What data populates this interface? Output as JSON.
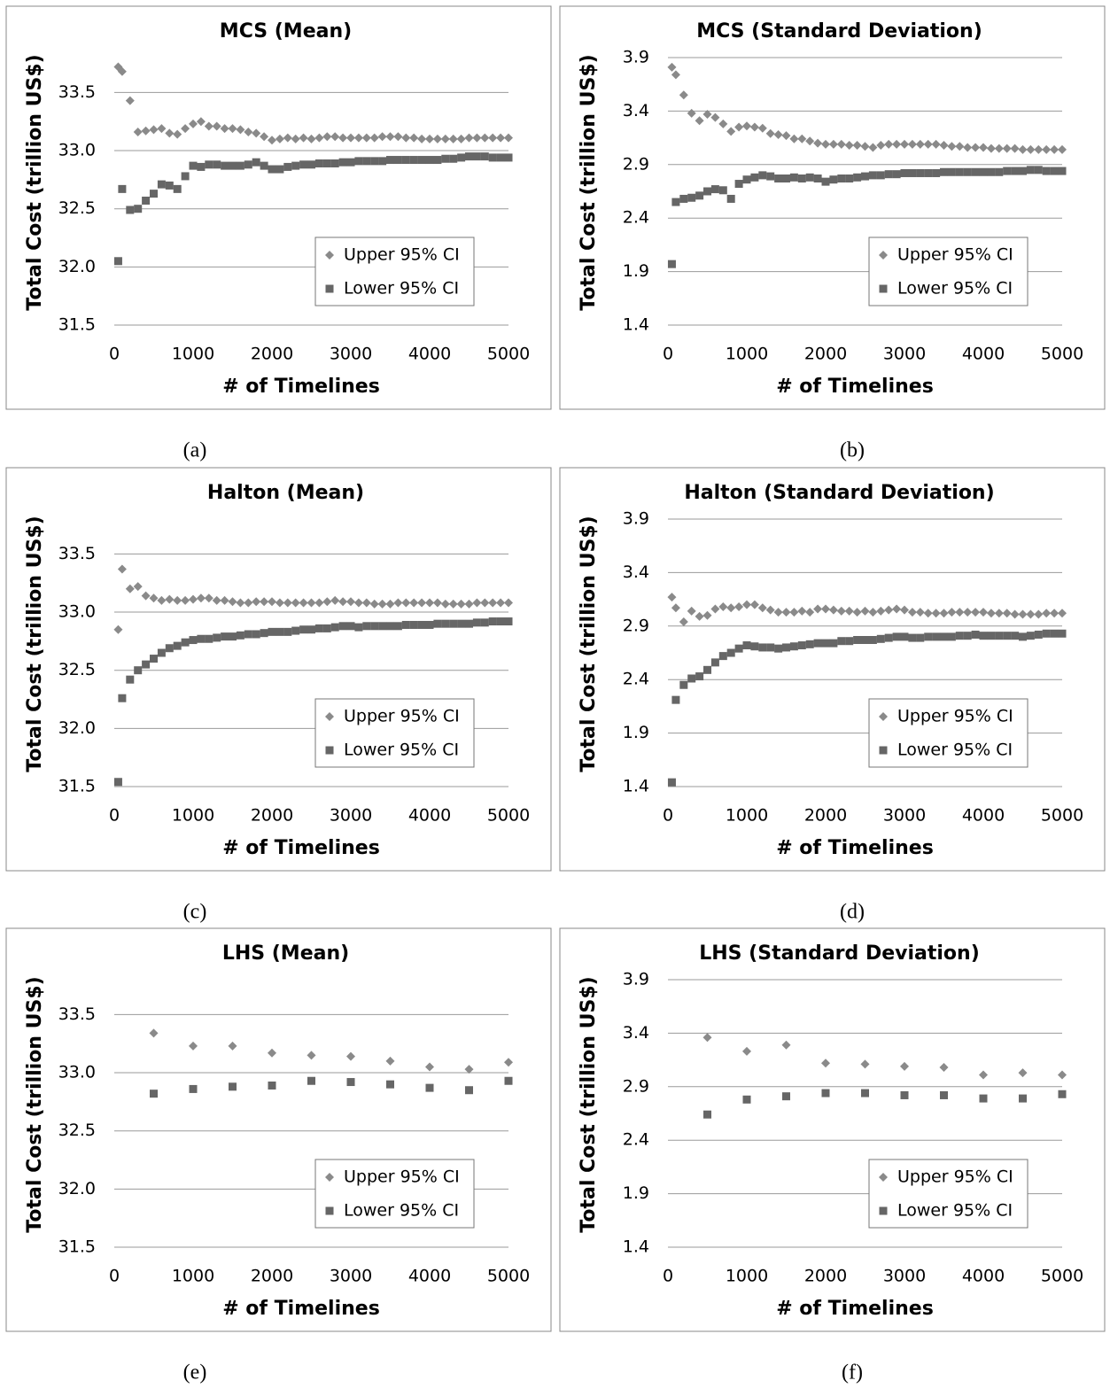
{
  "chart_data": [
    {
      "type": "scatter",
      "title": "MCS (Mean)",
      "caption": "(a)",
      "x_label": "# of Timelines",
      "y_label": "Total Cost (trillion US$)",
      "x": [
        50,
        100,
        200,
        300,
        400,
        500,
        600,
        700,
        800,
        900,
        1000,
        1100,
        1200,
        1300,
        1400,
        1500,
        1600,
        1700,
        1800,
        1900,
        2000,
        2100,
        2200,
        2300,
        2400,
        2500,
        2600,
        2700,
        2800,
        2900,
        3000,
        3100,
        3200,
        3300,
        3400,
        3500,
        3600,
        3700,
        3800,
        3900,
        4000,
        4100,
        4200,
        4300,
        4400,
        4500,
        4600,
        4700,
        4800,
        4900,
        5000
      ],
      "series": [
        {
          "name": "Upper 95% CI",
          "color": "#8a8a8a",
          "marker": "diamond",
          "values": [
            33.72,
            33.68,
            33.43,
            33.16,
            33.17,
            33.18,
            33.19,
            33.15,
            33.14,
            33.19,
            33.23,
            33.25,
            33.21,
            33.21,
            33.19,
            33.19,
            33.18,
            33.16,
            33.15,
            33.12,
            33.09,
            33.1,
            33.11,
            33.1,
            33.11,
            33.1,
            33.11,
            33.12,
            33.12,
            33.11,
            33.11,
            33.11,
            33.11,
            33.11,
            33.12,
            33.12,
            33.12,
            33.11,
            33.11,
            33.1,
            33.1,
            33.1,
            33.1,
            33.1,
            33.1,
            33.11,
            33.11,
            33.11,
            33.11,
            33.11,
            33.11
          ]
        },
        {
          "name": "Lower 95% CI",
          "color": "#666666",
          "marker": "square",
          "values": [
            32.05,
            32.67,
            32.49,
            32.5,
            32.57,
            32.63,
            32.71,
            32.7,
            32.67,
            32.78,
            32.87,
            32.86,
            32.88,
            32.88,
            32.87,
            32.87,
            32.87,
            32.88,
            32.9,
            32.87,
            32.84,
            32.84,
            32.86,
            32.87,
            32.88,
            32.88,
            32.89,
            32.89,
            32.89,
            32.9,
            32.9,
            32.91,
            32.91,
            32.91,
            32.91,
            32.92,
            32.92,
            32.92,
            32.92,
            32.92,
            32.92,
            32.92,
            32.93,
            32.93,
            32.94,
            32.95,
            32.95,
            32.95,
            32.94,
            32.94,
            32.94
          ]
        }
      ],
      "xlim": [
        0,
        5000
      ],
      "xticks": [
        0,
        1000,
        2000,
        3000,
        4000,
        5000
      ],
      "ylim": [
        31.5,
        33.8
      ],
      "yticks": [
        31.5,
        {
          "value": 32,
          "label": "32.0"
        },
        32.5,
        {
          "value": 33,
          "label": "33.0"
        },
        33.5
      ],
      "grid": true,
      "legend": "lower right"
    },
    {
      "type": "scatter",
      "title": "MCS (Standard Deviation)",
      "caption": "(b)",
      "x_label": "# of Timelines",
      "y_label": "Total Cost (trillion US$)",
      "x": [
        50,
        100,
        200,
        300,
        400,
        500,
        600,
        700,
        800,
        900,
        1000,
        1100,
        1200,
        1300,
        1400,
        1500,
        1600,
        1700,
        1800,
        1900,
        2000,
        2100,
        2200,
        2300,
        2400,
        2500,
        2600,
        2700,
        2800,
        2900,
        3000,
        3100,
        3200,
        3300,
        3400,
        3500,
        3600,
        3700,
        3800,
        3900,
        4000,
        4100,
        4200,
        4300,
        4400,
        4500,
        4600,
        4700,
        4800,
        4900,
        5000
      ],
      "series": [
        {
          "name": "Upper 95% CI",
          "color": "#8a8a8a",
          "marker": "diamond",
          "values": [
            3.81,
            3.74,
            3.55,
            3.38,
            3.31,
            3.37,
            3.34,
            3.28,
            3.21,
            3.25,
            3.26,
            3.25,
            3.24,
            3.19,
            3.18,
            3.17,
            3.14,
            3.14,
            3.12,
            3.1,
            3.09,
            3.09,
            3.09,
            3.08,
            3.08,
            3.07,
            3.06,
            3.08,
            3.09,
            3.09,
            3.09,
            3.09,
            3.09,
            3.09,
            3.09,
            3.08,
            3.07,
            3.07,
            3.06,
            3.06,
            3.06,
            3.05,
            3.05,
            3.05,
            3.05,
            3.04,
            3.04,
            3.04,
            3.04,
            3.04,
            3.04
          ]
        },
        {
          "name": "Lower 95% CI",
          "color": "#666666",
          "marker": "square",
          "values": [
            1.97,
            2.55,
            2.58,
            2.59,
            2.61,
            2.65,
            2.67,
            2.66,
            2.58,
            2.72,
            2.76,
            2.78,
            2.8,
            2.79,
            2.77,
            2.77,
            2.78,
            2.77,
            2.78,
            2.77,
            2.74,
            2.76,
            2.77,
            2.77,
            2.78,
            2.79,
            2.8,
            2.8,
            2.81,
            2.81,
            2.82,
            2.82,
            2.82,
            2.82,
            2.82,
            2.83,
            2.83,
            2.83,
            2.83,
            2.83,
            2.83,
            2.83,
            2.83,
            2.84,
            2.84,
            2.84,
            2.85,
            2.85,
            2.84,
            2.84,
            2.84
          ]
        }
      ],
      "xlim": [
        0,
        5000
      ],
      "xticks": [
        0,
        1000,
        2000,
        3000,
        4000,
        5000
      ],
      "ylim": [
        1.4,
        3.9
      ],
      "yticks": [
        1.4,
        1.9,
        2.4,
        2.9,
        3.4,
        3.9
      ],
      "grid": true,
      "legend": "lower right"
    },
    {
      "type": "scatter",
      "title": "Halton (Mean)",
      "caption": "(c)",
      "x_label": "# of Timelines",
      "y_label": "Total Cost (trillion US$)",
      "x": [
        50,
        100,
        200,
        300,
        400,
        500,
        600,
        700,
        800,
        900,
        1000,
        1100,
        1200,
        1300,
        1400,
        1500,
        1600,
        1700,
        1800,
        1900,
        2000,
        2100,
        2200,
        2300,
        2400,
        2500,
        2600,
        2700,
        2800,
        2900,
        3000,
        3100,
        3200,
        3300,
        3400,
        3500,
        3600,
        3700,
        3800,
        3900,
        4000,
        4100,
        4200,
        4300,
        4400,
        4500,
        4600,
        4700,
        4800,
        4900,
        5000
      ],
      "series": [
        {
          "name": "Upper 95% CI",
          "color": "#8a8a8a",
          "marker": "diamond",
          "values": [
            32.85,
            33.37,
            33.2,
            33.22,
            33.14,
            33.12,
            33.1,
            33.11,
            33.1,
            33.1,
            33.11,
            33.12,
            33.12,
            33.1,
            33.1,
            33.09,
            33.08,
            33.08,
            33.09,
            33.09,
            33.09,
            33.08,
            33.08,
            33.08,
            33.08,
            33.08,
            33.08,
            33.09,
            33.1,
            33.09,
            33.09,
            33.08,
            33.08,
            33.07,
            33.07,
            33.07,
            33.08,
            33.08,
            33.08,
            33.08,
            33.08,
            33.08,
            33.07,
            33.07,
            33.07,
            33.07,
            33.08,
            33.08,
            33.08,
            33.08,
            33.08
          ]
        },
        {
          "name": "Lower 95% CI",
          "color": "#666666",
          "marker": "square",
          "values": [
            31.54,
            32.26,
            32.42,
            32.5,
            32.55,
            32.6,
            32.65,
            32.69,
            32.71,
            32.74,
            32.76,
            32.77,
            32.77,
            32.78,
            32.79,
            32.79,
            32.8,
            32.81,
            32.81,
            32.82,
            32.83,
            32.83,
            32.83,
            32.84,
            32.85,
            32.85,
            32.86,
            32.86,
            32.87,
            32.88,
            32.88,
            32.87,
            32.88,
            32.88,
            32.88,
            32.88,
            32.88,
            32.89,
            32.89,
            32.89,
            32.89,
            32.9,
            32.9,
            32.9,
            32.9,
            32.9,
            32.91,
            32.91,
            32.92,
            32.92,
            32.92
          ]
        }
      ],
      "xlim": [
        0,
        5000
      ],
      "xticks": [
        0,
        1000,
        2000,
        3000,
        4000,
        5000
      ],
      "ylim": [
        31.5,
        33.8
      ],
      "yticks": [
        31.5,
        {
          "value": 32,
          "label": "32.0"
        },
        32.5,
        {
          "value": 33,
          "label": "33.0"
        },
        33.5
      ],
      "grid": true,
      "legend": "lower right"
    },
    {
      "type": "scatter",
      "title": "Halton (Standard Deviation)",
      "caption": "(d)",
      "x_label": "# of Timelines",
      "y_label": "Total Cost (trillion US$)",
      "x": [
        50,
        100,
        200,
        300,
        400,
        500,
        600,
        700,
        800,
        900,
        1000,
        1100,
        1200,
        1300,
        1400,
        1500,
        1600,
        1700,
        1800,
        1900,
        2000,
        2100,
        2200,
        2300,
        2400,
        2500,
        2600,
        2700,
        2800,
        2900,
        3000,
        3100,
        3200,
        3300,
        3400,
        3500,
        3600,
        3700,
        3800,
        3900,
        4000,
        4100,
        4200,
        4300,
        4400,
        4500,
        4600,
        4700,
        4800,
        4900,
        5000
      ],
      "series": [
        {
          "name": "Upper 95% CI",
          "color": "#8a8a8a",
          "marker": "diamond",
          "values": [
            3.17,
            3.07,
            2.94,
            3.04,
            2.99,
            3.0,
            3.06,
            3.08,
            3.07,
            3.08,
            3.1,
            3.1,
            3.07,
            3.05,
            3.03,
            3.03,
            3.03,
            3.04,
            3.03,
            3.06,
            3.06,
            3.05,
            3.04,
            3.04,
            3.03,
            3.04,
            3.03,
            3.04,
            3.05,
            3.06,
            3.05,
            3.03,
            3.03,
            3.02,
            3.02,
            3.02,
            3.03,
            3.03,
            3.03,
            3.03,
            3.03,
            3.02,
            3.02,
            3.02,
            3.01,
            3.01,
            3.01,
            3.01,
            3.02,
            3.02,
            3.02
          ]
        },
        {
          "name": "Lower 95% CI",
          "color": "#666666",
          "marker": "square",
          "values": [
            1.44,
            2.21,
            2.35,
            2.41,
            2.43,
            2.49,
            2.56,
            2.62,
            2.65,
            2.69,
            2.72,
            2.71,
            2.7,
            2.7,
            2.69,
            2.7,
            2.71,
            2.72,
            2.73,
            2.74,
            2.74,
            2.74,
            2.76,
            2.76,
            2.77,
            2.77,
            2.77,
            2.78,
            2.79,
            2.8,
            2.8,
            2.79,
            2.79,
            2.8,
            2.8,
            2.8,
            2.8,
            2.81,
            2.81,
            2.82,
            2.81,
            2.81,
            2.81,
            2.81,
            2.81,
            2.8,
            2.81,
            2.82,
            2.83,
            2.83,
            2.83
          ]
        }
      ],
      "xlim": [
        0,
        5000
      ],
      "xticks": [
        0,
        1000,
        2000,
        3000,
        4000,
        5000
      ],
      "ylim": [
        1.4,
        3.9
      ],
      "yticks": [
        1.4,
        1.9,
        2.4,
        2.9,
        3.4,
        3.9
      ],
      "grid": true,
      "legend": "lower right"
    },
    {
      "type": "scatter",
      "title": "LHS (Mean)",
      "caption": "(e)",
      "x_label": "# of Timelines",
      "y_label": "Total Cost (trillion US$)",
      "x": [
        500,
        1000,
        1500,
        2000,
        2500,
        3000,
        3500,
        4000,
        4500,
        5000
      ],
      "series": [
        {
          "name": "Upper 95% CI",
          "color": "#8a8a8a",
          "marker": "diamond",
          "values": [
            33.34,
            33.23,
            33.23,
            33.17,
            33.15,
            33.14,
            33.1,
            33.05,
            33.03,
            33.09
          ]
        },
        {
          "name": "Lower 95% CI",
          "color": "#666666",
          "marker": "square",
          "values": [
            32.82,
            32.86,
            32.88,
            32.89,
            32.93,
            32.92,
            32.9,
            32.87,
            32.85,
            32.93
          ]
        }
      ],
      "xlim": [
        0,
        5000
      ],
      "xticks": [
        0,
        1000,
        2000,
        3000,
        4000,
        5000
      ],
      "ylim": [
        31.5,
        33.8
      ],
      "yticks": [
        31.5,
        {
          "value": 32,
          "label": "32.0"
        },
        32.5,
        {
          "value": 33,
          "label": "33.0"
        },
        33.5
      ],
      "grid": true,
      "legend": "lower right"
    },
    {
      "type": "scatter",
      "title": "LHS (Standard Deviation)",
      "caption": "(f)",
      "x_label": "# of Timelines",
      "y_label": "Total Cost (trillion US$)",
      "x": [
        500,
        1000,
        1500,
        2000,
        2500,
        3000,
        3500,
        4000,
        4500,
        5000
      ],
      "series": [
        {
          "name": "Upper 95% CI",
          "color": "#8a8a8a",
          "marker": "diamond",
          "values": [
            3.36,
            3.23,
            3.29,
            3.12,
            3.11,
            3.09,
            3.08,
            3.01,
            3.03,
            3.01
          ]
        },
        {
          "name": "Lower 95% CI",
          "color": "#666666",
          "marker": "square",
          "values": [
            2.64,
            2.78,
            2.81,
            2.84,
            2.84,
            2.82,
            2.82,
            2.79,
            2.79,
            2.83
          ]
        }
      ],
      "xlim": [
        0,
        5000
      ],
      "xticks": [
        0,
        1000,
        2000,
        3000,
        4000,
        5000
      ],
      "ylim": [
        1.4,
        3.9
      ],
      "yticks": [
        1.4,
        1.9,
        2.4,
        2.9,
        3.4,
        3.9
      ],
      "grid": true,
      "legend": "lower right"
    }
  ]
}
